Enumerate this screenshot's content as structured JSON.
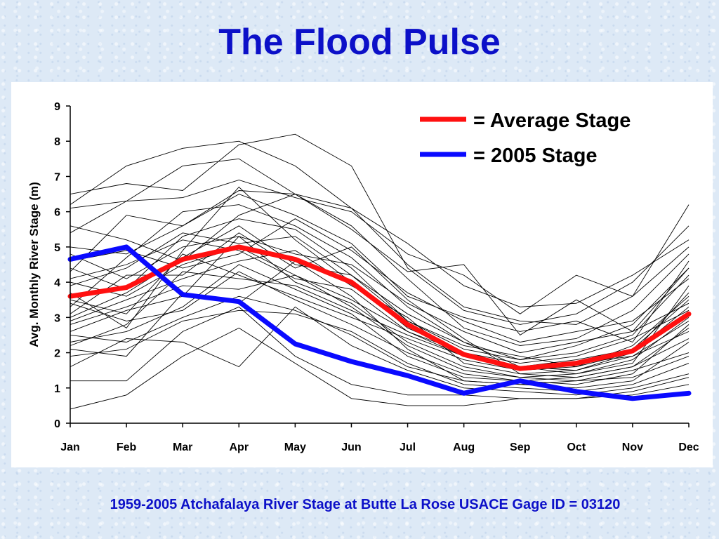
{
  "title": "The Flood Pulse",
  "caption": "1959-2005 Atchafalaya River Stage at Butte La Rose USACE Gage ID = 03120",
  "colors": {
    "title_text": "#0c10c8",
    "average_line": "#ff1010",
    "stage_2005_line": "#0a0aff",
    "annual_lines": "#000000"
  },
  "chart_data": {
    "type": "line",
    "xlabel": "",
    "ylabel": "Avg. Monthly River Stage (m)",
    "categories": [
      "Jan",
      "Feb",
      "Mar",
      "Apr",
      "May",
      "Jun",
      "Jul",
      "Aug",
      "Sep",
      "Oct",
      "Nov",
      "Dec"
    ],
    "ylim": [
      0,
      9
    ],
    "yticks": [
      "0",
      "1",
      "2",
      "3",
      "4",
      "5",
      "6",
      "7",
      "8",
      "9"
    ],
    "grid": false,
    "legend_position": "top-right",
    "legend": [
      {
        "label": "= Average Stage",
        "series": "average"
      },
      {
        "label": "= 2005 Stage",
        "series": "stage_2005"
      }
    ],
    "highlight_series": {
      "average": [
        3.6,
        3.85,
        4.65,
        5.0,
        4.65,
        4.0,
        2.8,
        1.95,
        1.55,
        1.7,
        2.05,
        3.1
      ],
      "stage_2005": [
        4.65,
        5.0,
        3.65,
        3.45,
        2.25,
        1.75,
        1.35,
        0.85,
        1.2,
        0.9,
        0.7,
        0.85
      ]
    },
    "annual_series": [
      [
        6.2,
        7.3,
        7.8,
        8.0,
        7.3,
        6.1,
        4.5,
        3.3,
        2.9,
        2.8,
        3.6,
        6.2
      ],
      [
        6.5,
        6.8,
        6.6,
        7.9,
        8.2,
        7.3,
        4.4,
        3.2,
        2.8,
        3.1,
        4.0,
        5.6
      ],
      [
        5.4,
        6.3,
        7.3,
        7.5,
        6.5,
        6.1,
        5.1,
        3.9,
        3.3,
        3.4,
        4.2,
        5.2
      ],
      [
        6.1,
        6.3,
        6.4,
        6.9,
        6.4,
        6.0,
        4.8,
        4.2,
        3.1,
        4.2,
        3.6,
        5.0
      ],
      [
        5.0,
        4.8,
        5.6,
        6.6,
        6.5,
        5.5,
        4.3,
        4.5,
        2.5,
        3.5,
        2.6,
        4.4
      ],
      [
        4.3,
        5.9,
        5.6,
        6.5,
        5.9,
        5.1,
        3.6,
        3.0,
        2.6,
        2.9,
        2.3,
        4.6
      ],
      [
        3.3,
        4.7,
        6.0,
        6.2,
        5.6,
        4.7,
        3.3,
        2.3,
        1.8,
        2.2,
        2.8,
        4.4
      ],
      [
        4.4,
        3.8,
        5.3,
        5.8,
        5.5,
        4.4,
        2.9,
        2.2,
        1.9,
        1.6,
        2.2,
        3.6
      ],
      [
        3.7,
        2.7,
        4.9,
        6.7,
        5.2,
        4.0,
        2.7,
        2.0,
        1.6,
        1.4,
        1.7,
        3.9
      ],
      [
        3.1,
        4.2,
        4.2,
        5.4,
        4.4,
        5.0,
        3.5,
        2.4,
        1.4,
        1.5,
        2.0,
        3.7
      ],
      [
        2.9,
        3.5,
        4.1,
        4.6,
        4.9,
        3.9,
        3.0,
        1.7,
        1.4,
        1.3,
        1.6,
        2.7
      ],
      [
        2.6,
        3.2,
        3.6,
        5.3,
        4.0,
        3.4,
        2.3,
        1.6,
        1.3,
        1.2,
        1.5,
        2.0
      ],
      [
        2.3,
        2.6,
        3.3,
        4.5,
        3.8,
        3.1,
        1.9,
        1.3,
        1.2,
        1.1,
        1.4,
        2.8
      ],
      [
        2.1,
        1.9,
        3.7,
        3.4,
        4.6,
        3.6,
        2.1,
        1.2,
        1.1,
        1.0,
        1.2,
        2.3
      ],
      [
        1.9,
        2.1,
        2.9,
        3.2,
        3.1,
        2.6,
        1.7,
        1.1,
        1.0,
        0.9,
        1.1,
        1.7
      ],
      [
        1.6,
        2.4,
        2.3,
        1.6,
        3.3,
        2.2,
        1.5,
        1.0,
        0.9,
        0.8,
        1.0,
        1.4
      ],
      [
        1.2,
        1.2,
        2.6,
        3.3,
        1.9,
        1.1,
        0.8,
        0.8,
        0.7,
        0.7,
        0.8,
        1.1
      ],
      [
        0.4,
        0.8,
        1.9,
        2.7,
        1.7,
        0.7,
        0.5,
        0.5,
        0.7,
        0.7,
        0.9,
        1.3
      ],
      [
        5.6,
        5.2,
        4.6,
        5.9,
        6.5,
        5.6,
        4.1,
        2.7,
        2.2,
        2.4,
        3.2,
        4.8
      ],
      [
        4.8,
        4.1,
        5.0,
        5.3,
        4.8,
        4.5,
        3.4,
        2.6,
        2.0,
        2.3,
        2.6,
        3.4
      ],
      [
        4.0,
        3.6,
        4.5,
        5.0,
        4.2,
        3.5,
        2.6,
        2.0,
        1.7,
        1.9,
        2.4,
        3.2
      ],
      [
        3.5,
        3.1,
        4.8,
        4.2,
        3.6,
        3.0,
        2.4,
        1.8,
        1.5,
        1.7,
        1.9,
        2.6
      ],
      [
        2.8,
        3.3,
        3.9,
        3.8,
        4.2,
        3.3,
        2.2,
        1.5,
        1.3,
        1.4,
        1.8,
        3.0
      ],
      [
        3.9,
        4.4,
        5.4,
        5.1,
        5.3,
        4.2,
        3.1,
        2.3,
        1.6,
        1.8,
        2.1,
        3.5
      ],
      [
        3.4,
        2.9,
        3.2,
        4.3,
        3.5,
        2.8,
        2.0,
        1.4,
        1.2,
        1.3,
        1.6,
        2.4
      ],
      [
        2.5,
        2.3,
        3.0,
        3.6,
        3.2,
        2.5,
        1.6,
        1.2,
        1.1,
        1.2,
        1.3,
        1.9
      ],
      [
        4.6,
        4.9,
        4.4,
        4.8,
        5.8,
        4.9,
        3.7,
        2.9,
        2.3,
        2.6,
        2.9,
        4.1
      ],
      [
        2.2,
        2.8,
        4.3,
        4.1,
        3.9,
        3.2,
        2.5,
        1.9,
        1.5,
        1.6,
        2.0,
        3.3
      ],
      [
        3.0,
        3.7,
        4.7,
        5.6,
        4.5,
        4.2,
        2.9,
        2.1,
        1.8,
        2.0,
        2.5,
        4.2
      ],
      [
        4.1,
        4.5,
        5.2,
        4.9,
        4.1,
        3.8,
        2.6,
        1.9,
        1.6,
        1.5,
        1.9,
        2.9
      ]
    ]
  }
}
